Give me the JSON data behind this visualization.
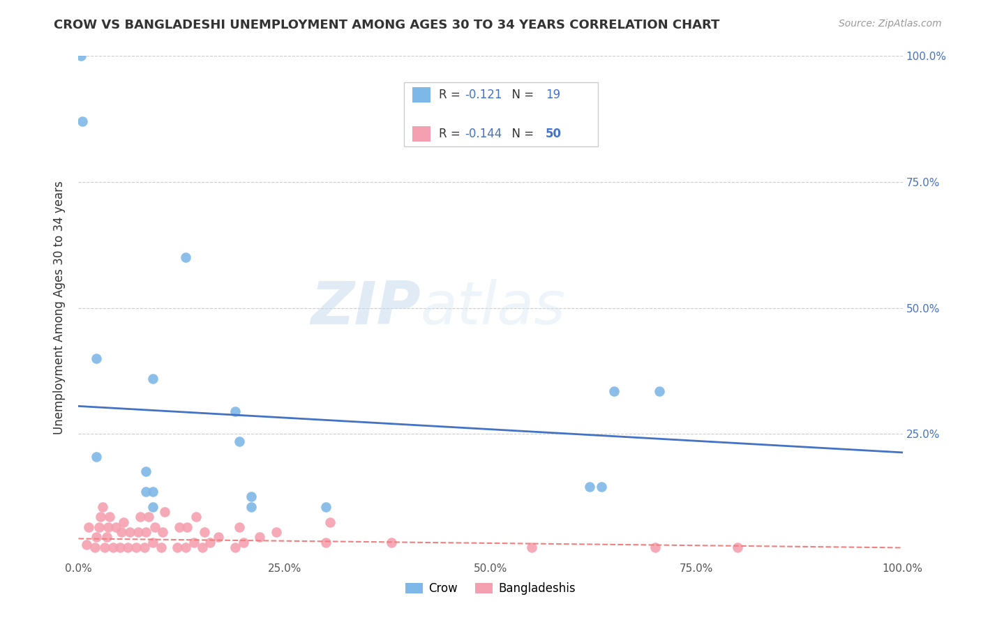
{
  "title": "CROW VS BANGLADESHI UNEMPLOYMENT AMONG AGES 30 TO 34 YEARS CORRELATION CHART",
  "source": "Source: ZipAtlas.com",
  "ylabel": "Unemployment Among Ages 30 to 34 years",
  "crow_R": -0.121,
  "crow_N": 19,
  "bangladeshi_R": -0.144,
  "bangladeshi_N": 50,
  "crow_color": "#7EB8E8",
  "bangladeshi_color": "#F5A0B0",
  "crow_line_color": "#4472C4",
  "bangladeshi_line_color": "#F08080",
  "crow_points_x": [
    0.003,
    0.005,
    0.13,
    0.022,
    0.09,
    0.19,
    0.195,
    0.65,
    0.705,
    0.022,
    0.082,
    0.082,
    0.09,
    0.09,
    0.62,
    0.635,
    0.21,
    0.21,
    0.3
  ],
  "crow_points_y": [
    1.0,
    0.87,
    0.6,
    0.4,
    0.36,
    0.295,
    0.235,
    0.335,
    0.335,
    0.205,
    0.175,
    0.135,
    0.135,
    0.105,
    0.145,
    0.145,
    0.105,
    0.125,
    0.105
  ],
  "bangladeshi_points_x": [
    0.01,
    0.012,
    0.02,
    0.022,
    0.025,
    0.027,
    0.029,
    0.032,
    0.034,
    0.036,
    0.038,
    0.042,
    0.045,
    0.05,
    0.052,
    0.055,
    0.06,
    0.062,
    0.07,
    0.072,
    0.075,
    0.08,
    0.082,
    0.085,
    0.09,
    0.093,
    0.1,
    0.102,
    0.105,
    0.12,
    0.122,
    0.13,
    0.132,
    0.14,
    0.143,
    0.15,
    0.153,
    0.16,
    0.17,
    0.19,
    0.195,
    0.2,
    0.22,
    0.24,
    0.3,
    0.305,
    0.38,
    0.55,
    0.7,
    0.8
  ],
  "bangladeshi_points_y": [
    0.03,
    0.065,
    0.025,
    0.045,
    0.065,
    0.085,
    0.105,
    0.025,
    0.045,
    0.065,
    0.085,
    0.025,
    0.065,
    0.025,
    0.055,
    0.075,
    0.025,
    0.055,
    0.025,
    0.055,
    0.085,
    0.025,
    0.055,
    0.085,
    0.035,
    0.065,
    0.025,
    0.055,
    0.095,
    0.025,
    0.065,
    0.025,
    0.065,
    0.035,
    0.085,
    0.025,
    0.055,
    0.035,
    0.045,
    0.025,
    0.065,
    0.035,
    0.045,
    0.055,
    0.035,
    0.075,
    0.035,
    0.025,
    0.025,
    0.025
  ],
  "xlim": [
    0.0,
    1.0
  ],
  "ylim": [
    0.0,
    1.0
  ],
  "xtick_vals": [
    0.0,
    0.25,
    0.5,
    0.75,
    1.0
  ],
  "xtick_labels": [
    "0.0%",
    "25.0%",
    "50.0%",
    "75.0%",
    "100.0%"
  ],
  "ytick_vals": [
    0.25,
    0.5,
    0.75,
    1.0
  ],
  "ytick_labels": [
    "25.0%",
    "50.0%",
    "75.0%",
    "100.0%"
  ],
  "watermark_text": "ZIP",
  "watermark_text2": "atlas",
  "background_color": "#FFFFFF",
  "grid_color": "#CCCCCC",
  "crow_line_intercept": 0.305,
  "crow_line_slope": -0.092,
  "bangladeshi_line_intercept": 0.042,
  "bangladeshi_line_slope": -0.018,
  "number_color": "#4472C4",
  "axis_label_color": "#555555",
  "title_color": "#333333"
}
